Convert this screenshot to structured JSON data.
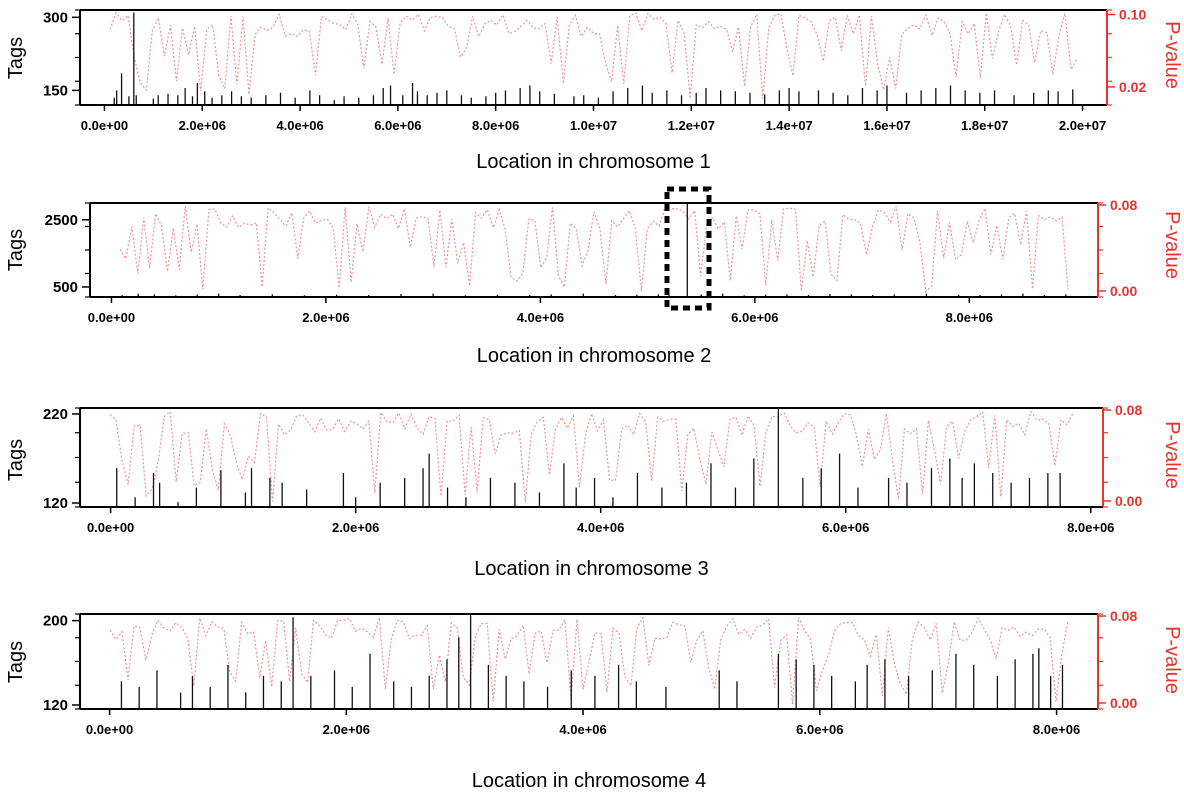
{
  "chart_data": [
    {
      "type": "bar",
      "xlabel": "Location in chromosome 1",
      "ylabel_left": "Tags",
      "ylabel_right": "P-value",
      "x_ticks": [
        "0.0e+00",
        "2.0e+06",
        "4.0e+06",
        "6.0e+06",
        "8.0e+06",
        "1.0e+07",
        "1.2e+07",
        "1.4e+07",
        "1.6e+07",
        "1.8e+07",
        "2.0e+07"
      ],
      "x_tick_values": [
        0,
        2000000,
        4000000,
        6000000,
        8000000,
        10000000,
        12000000,
        14000000,
        16000000,
        18000000,
        20000000
      ],
      "y_left_ticks": [
        "300",
        "150"
      ],
      "y_left_tick_values": [
        300,
        150
      ],
      "y_left_range": [
        120,
        315
      ],
      "y_right_ticks": [
        "0.10",
        "0.02"
      ],
      "y_right_tick_values": [
        0.1,
        0.02
      ],
      "y_right_range": [
        0.0,
        0.105
      ],
      "x_range": [
        -500000,
        20500000
      ],
      "bars": [
        [
          200000,
          135
        ],
        [
          250000,
          150
        ],
        [
          350000,
          185
        ],
        [
          500000,
          138
        ],
        [
          600000,
          310
        ],
        [
          650000,
          140
        ],
        [
          1000000,
          133
        ],
        [
          1100000,
          140
        ],
        [
          1300000,
          143
        ],
        [
          1500000,
          140
        ],
        [
          1650000,
          155
        ],
        [
          1800000,
          138
        ],
        [
          1900000,
          165
        ],
        [
          2050000,
          148
        ],
        [
          2200000,
          135
        ],
        [
          2400000,
          140
        ],
        [
          2600000,
          148
        ],
        [
          2800000,
          138
        ],
        [
          3000000,
          135
        ],
        [
          3300000,
          140
        ],
        [
          3600000,
          145
        ],
        [
          3900000,
          135
        ],
        [
          4200000,
          150
        ],
        [
          4400000,
          140
        ],
        [
          4700000,
          130
        ],
        [
          4900000,
          138
        ],
        [
          5200000,
          135
        ],
        [
          5500000,
          140
        ],
        [
          5700000,
          155
        ],
        [
          5850000,
          160
        ],
        [
          6100000,
          140
        ],
        [
          6300000,
          165
        ],
        [
          6400000,
          148
        ],
        [
          6600000,
          140
        ],
        [
          6800000,
          145
        ],
        [
          7000000,
          150
        ],
        [
          7300000,
          140
        ],
        [
          7500000,
          135
        ],
        [
          7800000,
          138
        ],
        [
          8000000,
          145
        ],
        [
          8200000,
          150
        ],
        [
          8500000,
          155
        ],
        [
          8700000,
          160
        ],
        [
          8900000,
          148
        ],
        [
          9200000,
          143
        ],
        [
          9600000,
          138
        ],
        [
          9800000,
          140
        ],
        [
          10100000,
          135
        ],
        [
          10400000,
          148
        ],
        [
          10700000,
          155
        ],
        [
          11000000,
          160
        ],
        [
          11200000,
          145
        ],
        [
          11500000,
          150
        ],
        [
          11800000,
          140
        ],
        [
          12100000,
          145
        ],
        [
          12300000,
          155
        ],
        [
          12600000,
          150
        ],
        [
          12900000,
          148
        ],
        [
          13200000,
          145
        ],
        [
          13500000,
          142
        ],
        [
          13800000,
          150
        ],
        [
          14000000,
          155
        ],
        [
          14200000,
          148
        ],
        [
          14600000,
          150
        ],
        [
          14900000,
          145
        ],
        [
          15200000,
          140
        ],
        [
          15500000,
          155
        ],
        [
          15800000,
          150
        ],
        [
          16000000,
          160
        ],
        [
          16400000,
          145
        ],
        [
          16700000,
          150
        ],
        [
          17000000,
          155
        ],
        [
          17300000,
          160
        ],
        [
          17600000,
          150
        ],
        [
          17900000,
          145
        ],
        [
          18200000,
          150
        ],
        [
          18600000,
          140
        ],
        [
          19000000,
          145
        ],
        [
          19300000,
          150
        ],
        [
          19500000,
          148
        ],
        [
          19800000,
          152
        ]
      ]
    },
    {
      "type": "bar",
      "xlabel": "Location in chromosome 2",
      "ylabel_left": "Tags",
      "ylabel_right": "P-value",
      "x_ticks": [
        "0.0e+00",
        "2.0e+06",
        "4.0e+06",
        "6.0e+06",
        "8.0e+06"
      ],
      "x_tick_values": [
        0,
        2000000,
        4000000,
        6000000,
        8000000
      ],
      "y_left_ticks": [
        "2500",
        "500"
      ],
      "y_left_tick_values": [
        2500,
        500
      ],
      "y_left_range": [
        200,
        3000
      ],
      "y_right_ticks": [
        "0.08",
        "0.00"
      ],
      "y_right_tick_values": [
        0.08,
        0.0
      ],
      "y_right_range": [
        0.0,
        0.08
      ],
      "x_range": [
        -200000,
        9200000
      ],
      "bars": [
        [
          100000,
          260
        ],
        [
          250000,
          300
        ],
        [
          400000,
          280
        ],
        [
          600000,
          250
        ],
        [
          800000,
          270
        ],
        [
          1000000,
          300
        ],
        [
          1200000,
          260
        ],
        [
          1500000,
          280
        ],
        [
          1800000,
          250
        ],
        [
          2100000,
          270
        ],
        [
          2400000,
          260
        ],
        [
          2700000,
          290
        ],
        [
          3000000,
          300
        ],
        [
          3300000,
          250
        ],
        [
          3600000,
          270
        ],
        [
          3900000,
          260
        ],
        [
          4100000,
          280
        ],
        [
          4400000,
          300
        ],
        [
          4700000,
          260
        ],
        [
          4900000,
          270
        ],
        [
          5100000,
          280
        ],
        [
          5200000,
          260
        ],
        [
          5370000,
          3000
        ],
        [
          5500000,
          280
        ],
        [
          5700000,
          300
        ],
        [
          5900000,
          250
        ],
        [
          6100000,
          270
        ],
        [
          6300000,
          280
        ],
        [
          6500000,
          260
        ],
        [
          6700000,
          290
        ],
        [
          6900000,
          280
        ],
        [
          7100000,
          260
        ],
        [
          7300000,
          280
        ],
        [
          7600000,
          300
        ],
        [
          7900000,
          270
        ],
        [
          8100000,
          260
        ],
        [
          8300000,
          280
        ],
        [
          8500000,
          300
        ],
        [
          8700000,
          260
        ],
        [
          8900000,
          280
        ]
      ]
    },
    {
      "type": "bar",
      "xlabel": "Location in chromosome 3",
      "ylabel_left": "Tags",
      "ylabel_right": "P-value",
      "x_ticks": [
        "0.0e+00",
        "2.0e+06",
        "4.0e+06",
        "6.0e+06",
        "8.0e+06"
      ],
      "x_tick_values": [
        0,
        2000000,
        4000000,
        6000000,
        8000000
      ],
      "y_left_ticks": [
        "220",
        "120"
      ],
      "y_left_tick_values": [
        220,
        120
      ],
      "y_left_range": [
        120,
        222
      ],
      "y_right_ticks": [
        "0.08",
        "0.00"
      ],
      "y_right_tick_values": [
        0.08,
        0.0
      ],
      "y_right_range": [
        0.0,
        0.08
      ],
      "x_range": [
        -250000,
        8100000
      ],
      "bars": [
        [
          50000,
          160
        ],
        [
          200000,
          130
        ],
        [
          350000,
          155
        ],
        [
          400000,
          145
        ],
        [
          550000,
          125
        ],
        [
          700000,
          140
        ],
        [
          900000,
          158
        ],
        [
          1100000,
          135
        ],
        [
          1150000,
          160
        ],
        [
          1300000,
          150
        ],
        [
          1400000,
          145
        ],
        [
          1600000,
          138
        ],
        [
          1900000,
          155
        ],
        [
          2000000,
          130
        ],
        [
          2200000,
          145
        ],
        [
          2400000,
          150
        ],
        [
          2550000,
          160
        ],
        [
          2600000,
          175
        ],
        [
          2750000,
          140
        ],
        [
          2900000,
          130
        ],
        [
          3100000,
          150
        ],
        [
          3300000,
          145
        ],
        [
          3500000,
          135
        ],
        [
          3700000,
          165
        ],
        [
          3800000,
          140
        ],
        [
          3950000,
          150
        ],
        [
          4100000,
          130
        ],
        [
          4300000,
          155
        ],
        [
          4500000,
          140
        ],
        [
          4700000,
          145
        ],
        [
          4900000,
          165
        ],
        [
          5100000,
          140
        ],
        [
          5250000,
          170
        ],
        [
          5450000,
          222
        ],
        [
          5650000,
          150
        ],
        [
          5800000,
          160
        ],
        [
          5950000,
          175
        ],
        [
          6100000,
          140
        ],
        [
          6350000,
          150
        ],
        [
          6500000,
          145
        ],
        [
          6700000,
          160
        ],
        [
          6850000,
          170
        ],
        [
          6950000,
          150
        ],
        [
          7050000,
          165
        ],
        [
          7200000,
          155
        ],
        [
          7350000,
          145
        ],
        [
          7500000,
          150
        ],
        [
          7650000,
          155
        ],
        [
          7750000,
          155
        ]
      ]
    },
    {
      "type": "bar",
      "xlabel": "Location in chromosome 4",
      "ylabel_left": "Tags",
      "ylabel_right": "P-value",
      "x_ticks": [
        "0.0e+00",
        "2.0e+06",
        "4.0e+06",
        "6.0e+06",
        "8.0e+06"
      ],
      "x_tick_values": [
        0,
        2000000,
        4000000,
        6000000,
        8000000
      ],
      "y_left_ticks": [
        "200",
        "120"
      ],
      "y_left_tick_values": [
        200,
        120
      ],
      "y_left_range": [
        120,
        206
      ],
      "y_right_ticks": [
        "0.08",
        "0.00"
      ],
      "y_right_tick_values": [
        0.08,
        0.0
      ],
      "y_right_range": [
        0.0,
        0.08
      ],
      "x_range": [
        -250000,
        8350000
      ],
      "bars": [
        [
          100000,
          145
        ],
        [
          250000,
          140
        ],
        [
          400000,
          155
        ],
        [
          600000,
          135
        ],
        [
          700000,
          150
        ],
        [
          850000,
          140
        ],
        [
          1000000,
          160
        ],
        [
          1150000,
          135
        ],
        [
          1300000,
          150
        ],
        [
          1450000,
          145
        ],
        [
          1550000,
          203
        ],
        [
          1700000,
          150
        ],
        [
          1900000,
          155
        ],
        [
          2050000,
          140
        ],
        [
          2200000,
          170
        ],
        [
          2400000,
          145
        ],
        [
          2550000,
          140
        ],
        [
          2700000,
          150
        ],
        [
          2850000,
          165
        ],
        [
          2950000,
          185
        ],
        [
          3050000,
          206
        ],
        [
          3200000,
          160
        ],
        [
          3350000,
          150
        ],
        [
          3500000,
          145
        ],
        [
          3700000,
          140
        ],
        [
          3900000,
          155
        ],
        [
          4100000,
          150
        ],
        [
          4300000,
          160
        ],
        [
          4450000,
          145
        ],
        [
          4700000,
          140
        ],
        [
          5150000,
          155
        ],
        [
          5300000,
          145
        ],
        [
          5650000,
          170
        ],
        [
          5800000,
          165
        ],
        [
          5950000,
          160
        ],
        [
          6100000,
          150
        ],
        [
          6300000,
          145
        ],
        [
          6400000,
          160
        ],
        [
          6550000,
          165
        ],
        [
          6750000,
          150
        ],
        [
          6950000,
          155
        ],
        [
          7150000,
          170
        ],
        [
          7300000,
          160
        ],
        [
          7500000,
          150
        ],
        [
          7650000,
          165
        ],
        [
          7800000,
          170
        ],
        [
          7850000,
          175
        ],
        [
          7950000,
          150
        ],
        [
          8050000,
          160
        ]
      ]
    }
  ]
}
